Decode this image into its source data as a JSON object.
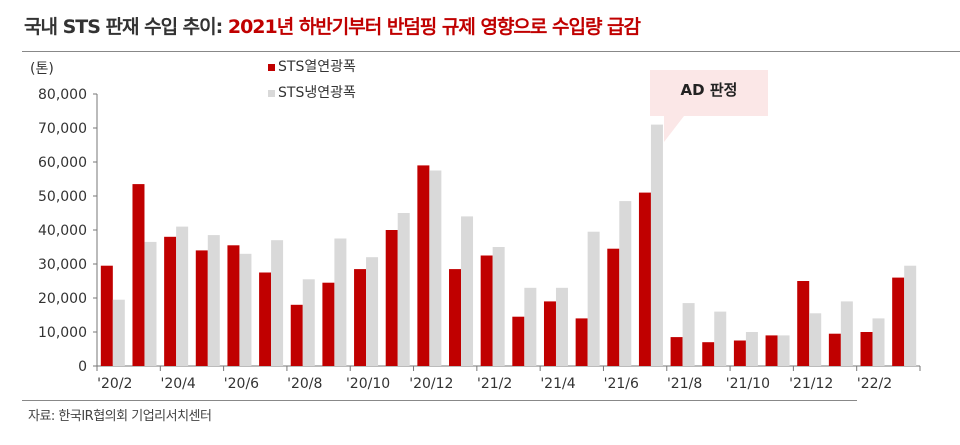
{
  "title": {
    "prefix": "국내 STS 판재 수입 추이: ",
    "highlight": "2021년 하반기부터 반덤핑 규제 영향으로 수입량 급감"
  },
  "source": "자료: 한국IR협의회 기업리서치센터",
  "annotation": "AD 판정",
  "colors": {
    "hot": "#c00000",
    "cold": "#d9d9d9"
  },
  "chart_data": {
    "type": "bar",
    "unit_label": "(톤)",
    "categories": [
      "'20/2",
      "'20/3",
      "'20/4",
      "'20/5",
      "'20/6",
      "'20/7",
      "'20/8",
      "'20/9",
      "'20/10",
      "'20/11",
      "'20/12",
      "'21/1",
      "'21/2",
      "'21/3",
      "'21/4",
      "'21/5",
      "'21/6",
      "'21/7",
      "'21/8",
      "'21/9",
      "'21/10",
      "'21/11",
      "'21/12",
      "'22/1",
      "'22/2",
      "'22/3"
    ],
    "x_tick_labels": [
      "'20/2",
      "'20/4",
      "'20/6",
      "'20/8",
      "'20/10",
      "'20/12",
      "'21/2",
      "'21/4",
      "'21/6",
      "'21/8",
      "'21/10",
      "'21/12",
      "'22/2"
    ],
    "y_tick_labels": [
      "0",
      "10,000",
      "20,000",
      "30,000",
      "40,000",
      "50,000",
      "60,000",
      "70,000",
      "80,000"
    ],
    "ylim": [
      0,
      80000
    ],
    "series": [
      {
        "name": "STS열연광폭",
        "values": [
          29500,
          53500,
          38000,
          34000,
          35500,
          27500,
          18000,
          24500,
          28500,
          40000,
          59000,
          28500,
          32500,
          14500,
          19000,
          14000,
          34500,
          51000,
          8500,
          7000,
          7500,
          9000,
          25000,
          9500,
          10000,
          26000
        ]
      },
      {
        "name": "STS냉연광폭",
        "values": [
          19500,
          36500,
          41000,
          38500,
          33000,
          37000,
          25500,
          37500,
          32000,
          45000,
          57500,
          44000,
          35000,
          23000,
          23000,
          39500,
          48500,
          71000,
          18500,
          16000,
          10000,
          9000,
          15500,
          19000,
          14000,
          29500
        ]
      }
    ],
    "legend_position": "top-left"
  }
}
